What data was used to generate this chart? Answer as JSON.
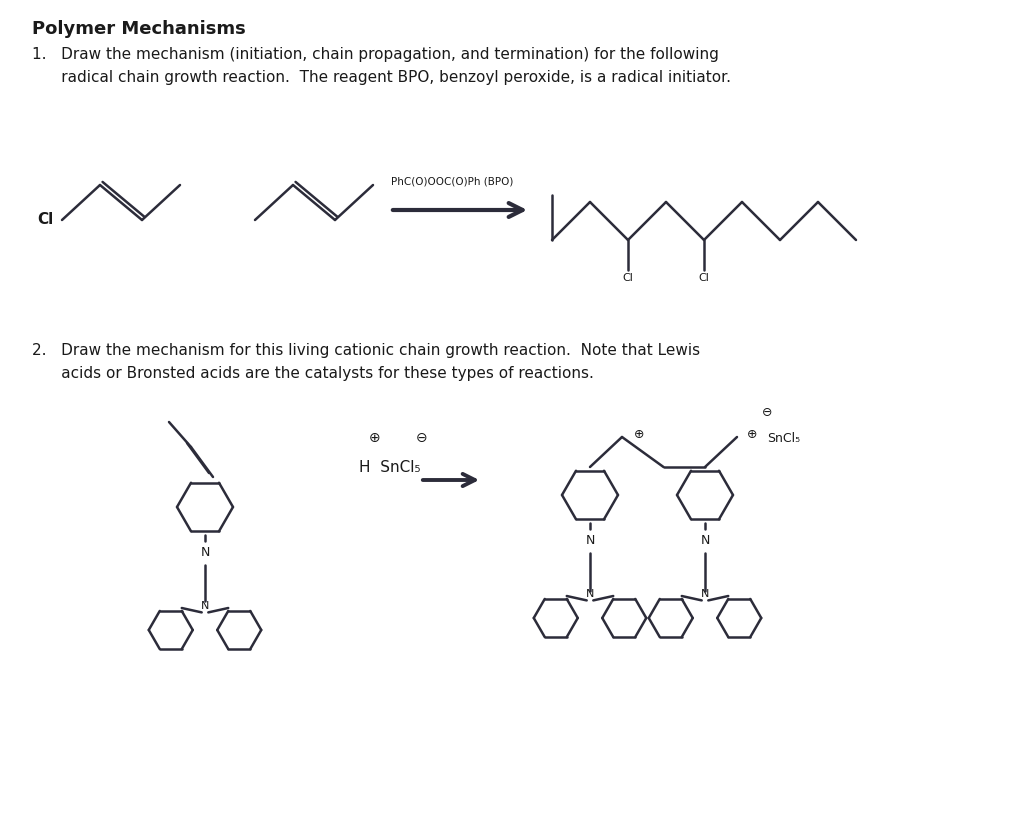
{
  "bg_color": "#ffffff",
  "title": "Polymer Mechanisms",
  "q1_line1": "1.   Draw the mechanism (initiation, chain propagation, and termination) for the following",
  "q1_line2": "      radical chain growth reaction.  The reagent BPO, benzoyl peroxide, is a radical initiator.",
  "q2_line1": "2.   Draw the mechanism for this living cationic chain growth reaction.  Note that Lewis",
  "q2_line2": "      acids or Bronsted acids are the catalysts for these types of reactions.",
  "bpo_label": "PhC(O)OOC(O)Ph (BPO)",
  "font_title": 13,
  "font_body": 11,
  "line_color": "#2c2c3a",
  "text_color": "#1a1a1a"
}
